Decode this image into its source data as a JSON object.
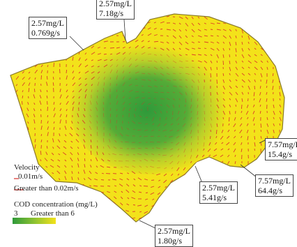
{
  "outlets": [
    {
      "id": "top-left",
      "concentration": "2.57mg/L",
      "flow": "0.769g/s"
    },
    {
      "id": "top-center",
      "concentration": "2.57mg/L",
      "flow": "7.18g/s"
    },
    {
      "id": "right-upper",
      "concentration": "7.57mg/L",
      "flow": "15.4g/s"
    },
    {
      "id": "right-lower",
      "concentration": "7.57mg/L",
      "flow": "64.4g/s"
    },
    {
      "id": "bottom-center",
      "concentration": "2.57mg/L",
      "flow": "5.41g/s"
    },
    {
      "id": "bottom",
      "concentration": "2.57mg/L",
      "flow": "1.80g/s"
    }
  ],
  "legend": {
    "velocity_title": "Velocity",
    "velocity_small": "0.01m/s",
    "velocity_large": "Greater than 0.02m/s",
    "cod_title": "COD concentration (mg/L)",
    "cod_min": "3",
    "cod_max": "Greater than 6"
  },
  "colors": {
    "lake_yellow": "#f3e21a",
    "lake_green": "#3fa23c",
    "arrow_red": "#d9302a",
    "shore": "#8a7a2a"
  }
}
